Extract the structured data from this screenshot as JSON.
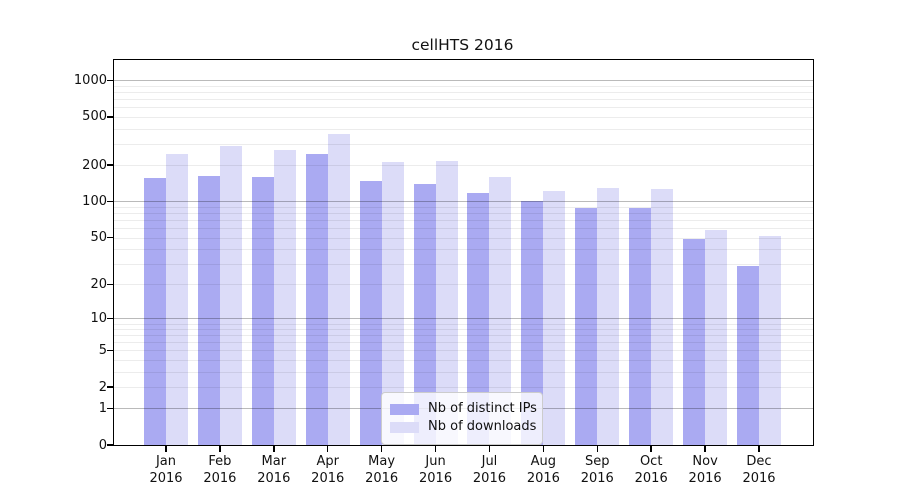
{
  "chart_data": {
    "type": "bar",
    "title": "cellHTS 2016",
    "categories": [
      "Jan",
      "Feb",
      "Mar",
      "Apr",
      "May",
      "Jun",
      "Jul",
      "Aug",
      "Sep",
      "Oct",
      "Nov",
      "Dec"
    ],
    "category_year": "2016",
    "series": [
      {
        "name": "Nb of distinct IPs",
        "color": "#aaaaf2",
        "values": [
          158,
          163,
          161,
          247,
          148,
          141,
          118,
          101,
          89,
          88,
          49,
          29
        ]
      },
      {
        "name": "Nb of downloads",
        "color": "#dcdcf8",
        "values": [
          248,
          288,
          266,
          364,
          212,
          215,
          161,
          122,
          130,
          126,
          58,
          52
        ]
      }
    ],
    "xlabel": "",
    "ylabel": "",
    "y_scale": "log1p",
    "ylim": [
      0,
      1470
    ],
    "y_ticks": [
      0,
      1,
      2,
      5,
      10,
      20,
      50,
      100,
      200,
      500,
      1000
    ],
    "gridlines_major": [
      1,
      10,
      100,
      1000
    ],
    "gridlines_minor": [
      2,
      3,
      4,
      5,
      6,
      7,
      8,
      9,
      20,
      30,
      40,
      50,
      60,
      70,
      80,
      90,
      200,
      300,
      400,
      500,
      600,
      700,
      800,
      900
    ],
    "grid": "on",
    "legend_position": "bottom-center"
  }
}
